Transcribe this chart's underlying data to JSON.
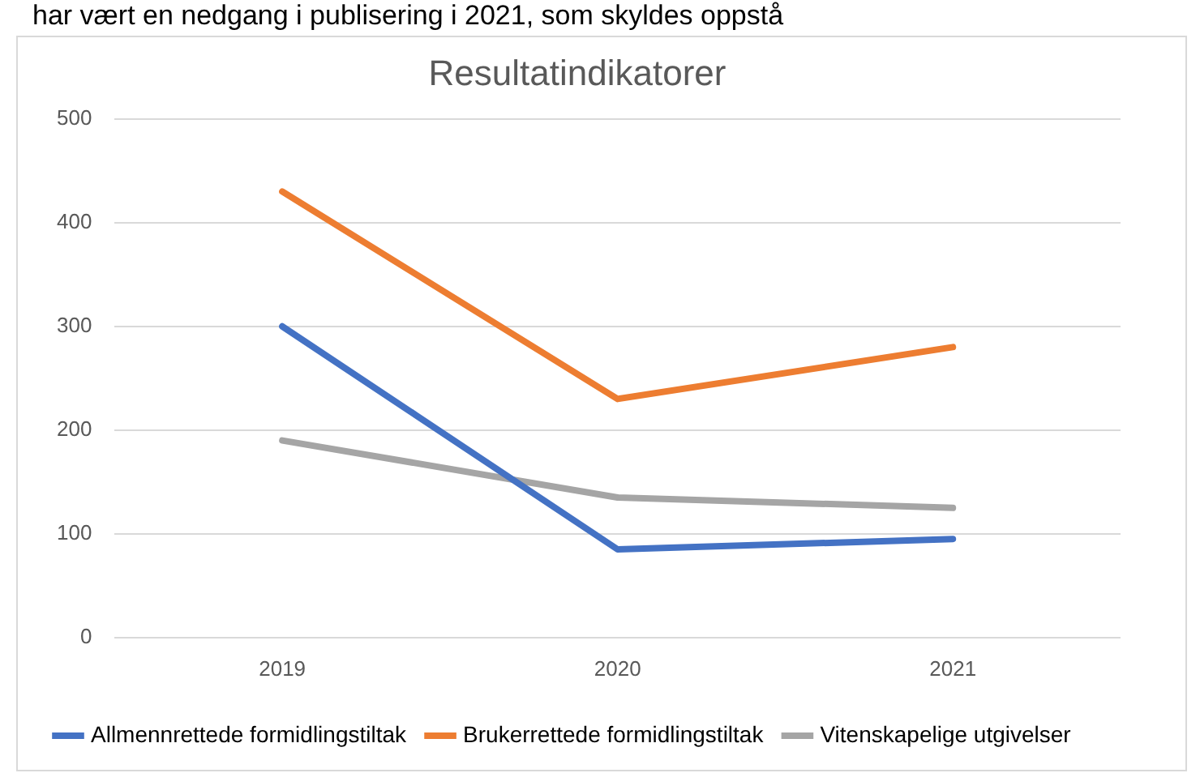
{
  "chart_data": {
    "type": "line",
    "title": "Resultatindikatorer",
    "annotations": [
      "har vært en nedgang i publisering i 2021, som skyldes oppstå"
    ],
    "categories": [
      "2019",
      "2020",
      "2021"
    ],
    "series": [
      {
        "name": "Allmennrettede formidlingstiltak",
        "color": "#4472c4",
        "values": [
          300,
          85,
          95
        ]
      },
      {
        "name": "Brukerrettede formidlingstiltak",
        "color": "#ed7d31",
        "values": [
          430,
          230,
          280
        ]
      },
      {
        "name": "Vitenskapelige utgivelser",
        "color": "#a5a5a5",
        "values": [
          190,
          135,
          125
        ]
      }
    ],
    "ylim": [
      0,
      500
    ],
    "yticks": [
      0,
      100,
      200,
      300,
      400,
      500
    ],
    "grid": "y",
    "legend": "bottom",
    "marker": "none",
    "line_style": "solid"
  }
}
